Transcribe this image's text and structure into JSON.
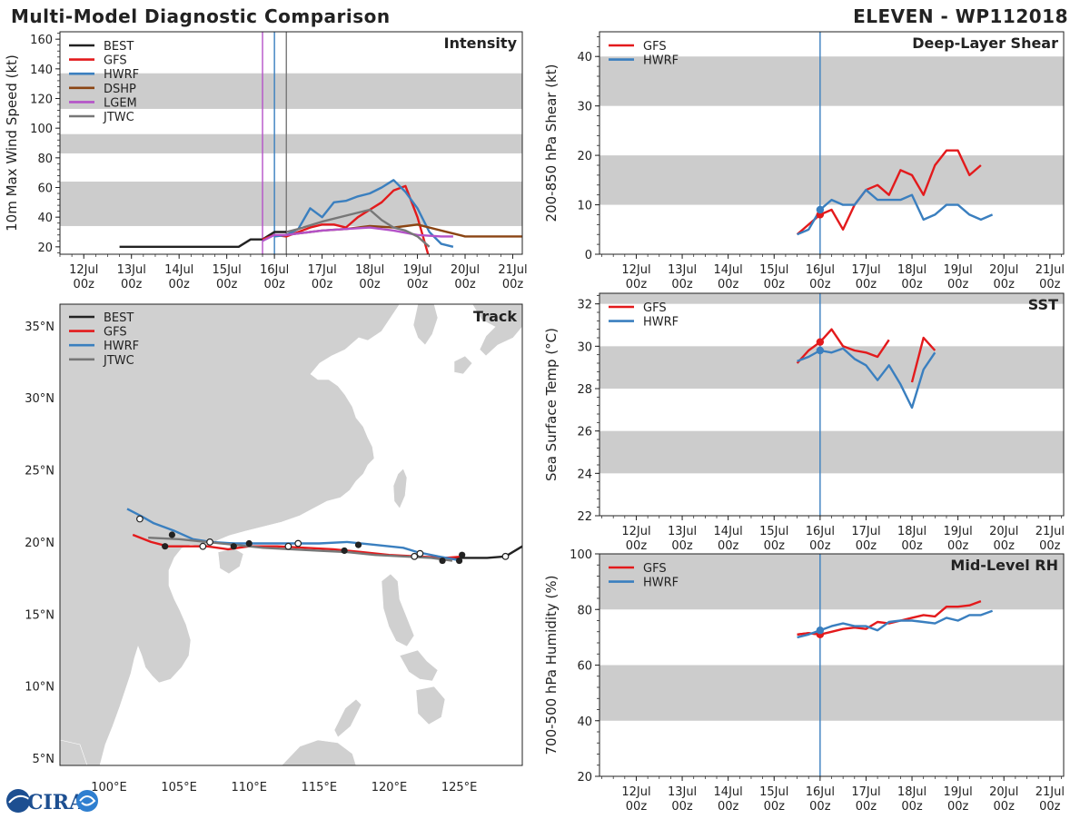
{
  "header": {
    "title": "Multi-Model Diagnostic Comparison",
    "storm": "ELEVEN - WP112018"
  },
  "logo": {
    "text": "CIRA"
  },
  "colors": {
    "BEST": "#222222",
    "GFS": "#e31a1c",
    "HWRF": "#3a7fbf",
    "DSHP": "#8b4513",
    "LGEM": "#b452c8",
    "JTWC": "#777777",
    "band": "#cccccc",
    "land": "#d0d0d0"
  },
  "time_ticks": [
    "12Jul",
    "13Jul",
    "14Jul",
    "15Jul",
    "16Jul",
    "17Jul",
    "18Jul",
    "19Jul",
    "20Jul",
    "21Jul"
  ],
  "time_ticks_sub": "00z",
  "chart_data": [
    {
      "id": "intensity",
      "type": "line",
      "title": "Intensity",
      "ylabel": "10m Max Wind Speed (kt)",
      "ylim": [
        15,
        165
      ],
      "yticks": [
        20,
        40,
        60,
        80,
        100,
        120,
        140,
        160
      ],
      "xlim_days": [
        11.5,
        21.2
      ],
      "bands": [
        [
          34,
          64
        ],
        [
          83,
          96
        ],
        [
          113,
          137
        ]
      ],
      "vlines": [
        {
          "t": 15.75,
          "color": "LGEM"
        },
        {
          "t": 16.0,
          "color": "HWRF"
        },
        {
          "t": 16.25,
          "color": "JTWC"
        }
      ],
      "legend": [
        "BEST",
        "GFS",
        "HWRF",
        "DSHP",
        "LGEM",
        "JTWC"
      ],
      "series": [
        {
          "name": "BEST",
          "t": [
            12.75,
            13.0,
            13.5,
            14.0,
            14.5,
            15.0,
            15.25,
            15.5,
            15.75,
            16.0,
            16.25
          ],
          "v": [
            20,
            20,
            20,
            20,
            20,
            20,
            20,
            25,
            25,
            30,
            30
          ]
        },
        {
          "name": "GFS",
          "t": [
            15.75,
            16.0,
            16.25,
            16.5,
            16.75,
            17.0,
            17.25,
            17.5,
            17.75,
            18.0,
            18.25,
            18.5,
            18.75,
            19.0,
            19.25
          ],
          "v": [
            25,
            28,
            27,
            30,
            33,
            35,
            35,
            33,
            40,
            45,
            50,
            58,
            61,
            40,
            12
          ]
        },
        {
          "name": "HWRF",
          "t": [
            16.0,
            16.25,
            16.5,
            16.75,
            17.0,
            17.25,
            17.5,
            17.75,
            18.0,
            18.25,
            18.5,
            18.75,
            19.0,
            19.25,
            19.5,
            19.75
          ],
          "v": [
            27,
            28,
            32,
            46,
            40,
            50,
            51,
            54,
            56,
            60,
            65,
            57,
            46,
            30,
            22,
            20
          ]
        },
        {
          "name": "DSHP",
          "t": [
            16.25,
            16.5,
            16.75,
            17.0,
            17.5,
            18.0,
            18.5,
            18.75,
            19.0,
            19.5,
            20.0,
            20.5,
            21.0,
            21.2
          ],
          "v": [
            28,
            29,
            30,
            31,
            32,
            34,
            33,
            34,
            35,
            31,
            27,
            27,
            27,
            27
          ]
        },
        {
          "name": "LGEM",
          "t": [
            15.75,
            16.0,
            16.25,
            16.5,
            16.75,
            17.0,
            17.5,
            18.0,
            18.5,
            19.0,
            19.5,
            19.75
          ],
          "v": [
            24,
            28,
            28,
            29,
            30,
            31,
            32,
            33,
            31,
            28,
            27,
            27
          ]
        },
        {
          "name": "JTWC",
          "t": [
            16.25,
            16.5,
            17.0,
            17.5,
            18.0,
            18.25,
            18.5,
            18.75,
            19.0,
            19.25
          ],
          "v": [
            30,
            32,
            37,
            41,
            45,
            38,
            33,
            31,
            27,
            20
          ]
        }
      ]
    },
    {
      "id": "shear",
      "type": "line",
      "title": "Deep-Layer Shear",
      "ylabel": "200-850 hPa Shear (kt)",
      "ylim": [
        0,
        45
      ],
      "yticks": [
        0,
        10,
        20,
        30,
        40
      ],
      "xlim_days": [
        11.2,
        21.3
      ],
      "bands": [
        [
          10,
          20
        ],
        [
          30,
          40
        ]
      ],
      "vlines": [
        {
          "t": 16.0,
          "color": "HWRF"
        }
      ],
      "legend": [
        "GFS",
        "HWRF"
      ],
      "series": [
        {
          "name": "GFS",
          "t": [
            15.5,
            15.75,
            16.0,
            16.25,
            16.5,
            16.75,
            17.0,
            17.25,
            17.5,
            17.75,
            18.0,
            18.25,
            18.5,
            18.75,
            19.0,
            19.25,
            19.5
          ],
          "v": [
            4,
            6,
            8,
            9,
            5,
            10,
            13,
            14,
            12,
            17,
            16,
            12,
            18,
            21,
            21,
            16,
            18
          ]
        },
        {
          "name": "HWRF",
          "t": [
            15.5,
            15.75,
            16.0,
            16.25,
            16.5,
            16.75,
            17.0,
            17.25,
            17.5,
            17.75,
            18.0,
            18.25,
            18.5,
            18.75,
            19.0,
            19.25,
            19.5,
            19.75
          ],
          "v": [
            4,
            5,
            9,
            11,
            10,
            10,
            13,
            11,
            11,
            11,
            12,
            7,
            8,
            10,
            10,
            8,
            7,
            8
          ]
        }
      ],
      "markers": [
        {
          "name": "GFS",
          "t": 16.0,
          "v": 8
        },
        {
          "name": "HWRF",
          "t": 16.0,
          "v": 9
        }
      ]
    },
    {
      "id": "sst",
      "type": "line",
      "title": "SST",
      "ylabel": "Sea Surface Temp (°C)",
      "ylim": [
        22,
        32.5
      ],
      "yticks": [
        22,
        24,
        26,
        28,
        30,
        32
      ],
      "xlim_days": [
        11.2,
        21.3
      ],
      "bands": [
        [
          24,
          26
        ],
        [
          28,
          30
        ],
        [
          32,
          32.5
        ]
      ],
      "vlines": [
        {
          "t": 16.0,
          "color": "HWRF"
        }
      ],
      "legend": [
        "GFS",
        "HWRF"
      ],
      "series": [
        {
          "name": "GFS",
          "t": [
            15.5,
            15.75,
            16.0,
            16.25,
            16.5,
            16.75,
            17.0,
            17.25,
            17.5
          ],
          "v": [
            29.2,
            29.8,
            30.2,
            30.8,
            30.0,
            29.8,
            29.7,
            29.5,
            30.3
          ]
        },
        {
          "name": "GFS",
          "t": [
            18.0,
            18.25,
            18.5
          ],
          "v": [
            28.3,
            30.4,
            29.8
          ]
        },
        {
          "name": "HWRF",
          "t": [
            15.5,
            15.75,
            16.0,
            16.25,
            16.5,
            16.75,
            17.0,
            17.25,
            17.5,
            17.75,
            18.0,
            18.25,
            18.5
          ],
          "v": [
            29.3,
            29.5,
            29.8,
            29.7,
            29.9,
            29.4,
            29.1,
            28.4,
            29.1,
            28.2,
            27.1,
            28.9,
            29.7
          ]
        }
      ],
      "markers": [
        {
          "name": "GFS",
          "t": 16.0,
          "v": 30.2
        },
        {
          "name": "HWRF",
          "t": 16.0,
          "v": 29.8
        }
      ]
    },
    {
      "id": "rh",
      "type": "line",
      "title": "Mid-Level RH",
      "ylabel": "700-500 hPa Humidity (%)",
      "ylim": [
        20,
        100
      ],
      "yticks": [
        20,
        40,
        60,
        80,
        100
      ],
      "xlim_days": [
        11.2,
        21.3
      ],
      "bands": [
        [
          40,
          60
        ],
        [
          80,
          100
        ]
      ],
      "vlines": [
        {
          "t": 16.0,
          "color": "HWRF"
        }
      ],
      "legend": [
        "GFS",
        "HWRF"
      ],
      "series": [
        {
          "name": "GFS",
          "t": [
            15.5,
            15.75,
            16.0,
            16.25,
            16.5,
            16.75,
            17.0,
            17.25,
            17.5,
            17.75,
            18.0,
            18.25,
            18.5,
            18.75,
            19.0,
            19.25,
            19.5
          ],
          "v": [
            71,
            71.5,
            71,
            72,
            73,
            73.5,
            73,
            75.5,
            75,
            76,
            77,
            78,
            77.5,
            81,
            81,
            81.5,
            83
          ]
        },
        {
          "name": "GFS",
          "t": [
            15.5,
            15.75,
            16.0
          ],
          "v": [
            71,
            71.5,
            71
          ]
        },
        {
          "name": "HWRF",
          "t": [
            15.5,
            15.75,
            16.0,
            16.25,
            16.5,
            16.75,
            17.0,
            17.25,
            17.5,
            17.75,
            18.0,
            18.25,
            18.5,
            18.75,
            19.0,
            19.25,
            19.5,
            19.75
          ],
          "v": [
            70,
            71,
            72.5,
            74,
            75,
            74,
            74,
            72.5,
            75.5,
            76,
            76,
            75.5,
            75,
            77,
            76,
            78,
            78,
            79.5
          ]
        }
      ],
      "markers": [
        {
          "name": "GFS",
          "t": 16.0,
          "v": 71
        },
        {
          "name": "HWRF",
          "t": 16.0,
          "v": 72.5
        }
      ]
    },
    {
      "id": "track",
      "type": "line",
      "title": "Track",
      "xlim": [
        96.5,
        129.5
      ],
      "ylim": [
        4.5,
        36.5
      ],
      "xticks": [
        100,
        105,
        110,
        115,
        120,
        125
      ],
      "xtick_labels": [
        "100°E",
        "105°E",
        "110°E",
        "115°E",
        "120°E",
        "125°E"
      ],
      "yticks": [
        5,
        10,
        15,
        20,
        25,
        30,
        35
      ],
      "ytick_labels": [
        "5°N",
        "10°N",
        "15°N",
        "20°N",
        "25°N",
        "30°N",
        "35°N"
      ],
      "legend": [
        "BEST",
        "GFS",
        "HWRF",
        "JTWC"
      ],
      "series": [
        {
          "name": "BEST",
          "lon": [
            124.0,
            125.0,
            126.0,
            127.0,
            128.3,
            129.5
          ],
          "lat": [
            18.9,
            18.9,
            18.9,
            18.9,
            19.0,
            19.7
          ]
        },
        {
          "name": "GFS",
          "lon": [
            101.7,
            103.0,
            104.2,
            105.5,
            107.0,
            108.5,
            110.0,
            112.0,
            114.0,
            116.0,
            118.0,
            120.0,
            122.0,
            124.0,
            125.3
          ],
          "lat": [
            20.5,
            20.0,
            19.7,
            19.7,
            19.7,
            19.5,
            19.7,
            19.7,
            19.6,
            19.5,
            19.3,
            19.1,
            19.0,
            18.9,
            19.0
          ]
        },
        {
          "name": "HWRF",
          "lon": [
            101.3,
            102.3,
            103.2,
            104.6,
            106.0,
            107.3,
            109.0,
            110.5,
            112.0,
            113.5,
            115.0,
            117.0,
            119.0,
            121.0,
            122.0,
            123.5,
            125.2
          ],
          "lat": [
            22.3,
            21.8,
            21.3,
            20.8,
            20.2,
            20.0,
            19.9,
            19.9,
            19.9,
            19.9,
            19.9,
            20.0,
            19.8,
            19.6,
            19.3,
            19.0,
            18.7
          ]
        },
        {
          "name": "JTWC",
          "lon": [
            102.8,
            105.0,
            107.0,
            109.0,
            111.0,
            113.0,
            115.0,
            117.0,
            119.0,
            121.0,
            123.0,
            124.5
          ],
          "lat": [
            20.3,
            20.2,
            20.0,
            19.8,
            19.6,
            19.5,
            19.4,
            19.3,
            19.1,
            19.0,
            18.9,
            18.7
          ]
        }
      ],
      "points_open": [
        {
          "lon": 102.2,
          "lat": 21.6
        },
        {
          "lon": 106.7,
          "lat": 19.7
        },
        {
          "lon": 107.2,
          "lat": 20.0
        },
        {
          "lon": 113.5,
          "lat": 19.9
        },
        {
          "lon": 112.8,
          "lat": 19.7
        },
        {
          "lon": 121.8,
          "lat": 19.0
        },
        {
          "lon": 122.2,
          "lat": 19.2
        },
        {
          "lon": 128.3,
          "lat": 19.0
        }
      ],
      "points_filled": [
        {
          "lon": 104.5,
          "lat": 20.5
        },
        {
          "lon": 104.0,
          "lat": 19.7
        },
        {
          "lon": 110.0,
          "lat": 19.9
        },
        {
          "lon": 108.9,
          "lat": 19.7
        },
        {
          "lon": 117.8,
          "lat": 19.8
        },
        {
          "lon": 116.8,
          "lat": 19.4
        },
        {
          "lon": 123.8,
          "lat": 18.7
        },
        {
          "lon": 125.2,
          "lat": 19.1
        },
        {
          "lon": 125.0,
          "lat": 18.7
        }
      ]
    }
  ]
}
